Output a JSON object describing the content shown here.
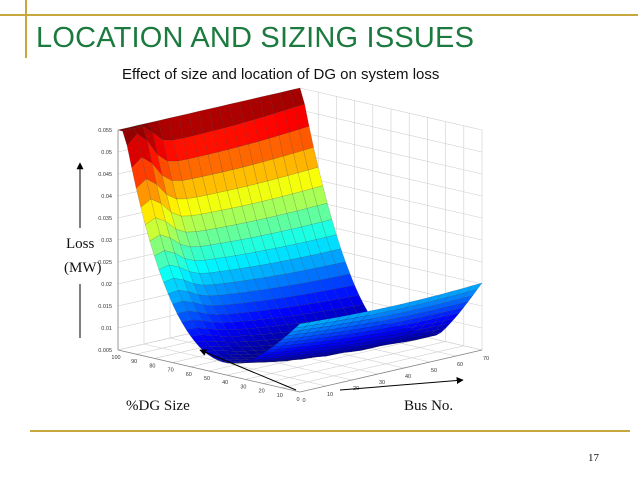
{
  "slide": {
    "title": "LOCATION AND SIZING ISSUES",
    "page_number": "17",
    "accent_color": "#c9a73f",
    "title_color": "#1b7a3d"
  },
  "annotations": {
    "y_label_line1": "Loss",
    "y_label_line2": "(MW)",
    "x_label": "%DG Size",
    "z_label": "Bus No."
  },
  "chart_data": {
    "type": "surface",
    "title": "Effect of size and location of DG on system loss",
    "z_axis": {
      "label": "Loss (MW)",
      "range": [
        0.005,
        0.055
      ],
      "ticks": [
        "0.005",
        "0.01",
        "0.015",
        "0.02",
        "0.025",
        "0.03",
        "0.035",
        "0.04",
        "0.045",
        "0.05",
        "0.055"
      ]
    },
    "x_axis": {
      "label": "%DG Size",
      "range": [
        0,
        100
      ],
      "ticks": [
        "100",
        "90",
        "80",
        "70",
        "60",
        "50",
        "40",
        "30",
        "20",
        "10",
        "0"
      ]
    },
    "y_axis": {
      "label": "Bus No.",
      "range": [
        0,
        70
      ],
      "ticks": [
        "0",
        "10",
        "20",
        "30",
        "40",
        "50",
        "60",
        "70"
      ]
    },
    "grid": true,
    "colormap": "jet",
    "surface_description": [
      {
        "dg_size": 0,
        "loss": 0.021
      },
      {
        "dg_size": 50,
        "loss": 0.009
      },
      {
        "dg_size": 100,
        "loss": 0.055
      }
    ]
  }
}
